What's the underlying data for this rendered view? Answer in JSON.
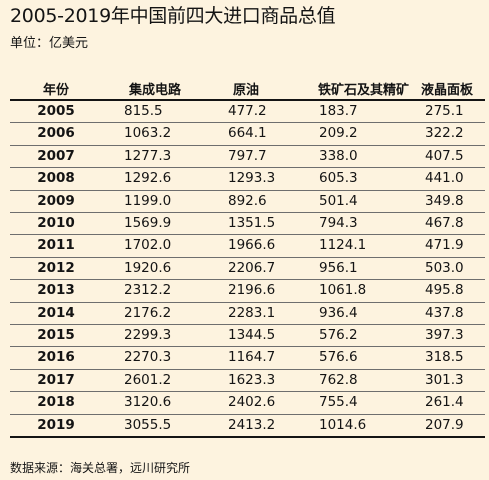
{
  "title": "2005-2019年中国前四大进口商品总值",
  "unit": "单位：亿美元",
  "source": "数据来源：海关总署，远川研究所",
  "chart_data": {
    "type": "table",
    "title": "2005-2019年中国前四大进口商品总值",
    "columns": [
      "年份",
      "集成电路",
      "原油",
      "铁矿石及其精矿",
      "液晶面板"
    ],
    "rows": [
      [
        "2005",
        "815.5",
        "477.2",
        "183.7",
        "275.1"
      ],
      [
        "2006",
        "1063.2",
        "664.1",
        "209.2",
        "322.2"
      ],
      [
        "2007",
        "1277.3",
        "797.7",
        "338.0",
        "407.5"
      ],
      [
        "2008",
        "1292.6",
        "1293.3",
        "605.3",
        "441.0"
      ],
      [
        "2009",
        "1199.0",
        "892.6",
        "501.4",
        "349.8"
      ],
      [
        "2010",
        "1569.9",
        "1351.5",
        "794.3",
        "467.8"
      ],
      [
        "2011",
        "1702.0",
        "1966.6",
        "1124.1",
        "471.9"
      ],
      [
        "2012",
        "1920.6",
        "2206.7",
        "956.1",
        "503.0"
      ],
      [
        "2013",
        "2312.2",
        "2196.6",
        "1061.8",
        "495.8"
      ],
      [
        "2014",
        "2176.2",
        "2283.1",
        "936.4",
        "437.8"
      ],
      [
        "2015",
        "2299.3",
        "1344.5",
        "576.2",
        "397.3"
      ],
      [
        "2016",
        "2270.3",
        "1164.7",
        "576.6",
        "318.5"
      ],
      [
        "2017",
        "2601.2",
        "1623.3",
        "762.8",
        "301.3"
      ],
      [
        "2018",
        "3120.6",
        "2402.6",
        "755.4",
        "261.4"
      ],
      [
        "2019",
        "3055.5",
        "2413.2",
        "1014.6",
        "207.9"
      ]
    ]
  }
}
